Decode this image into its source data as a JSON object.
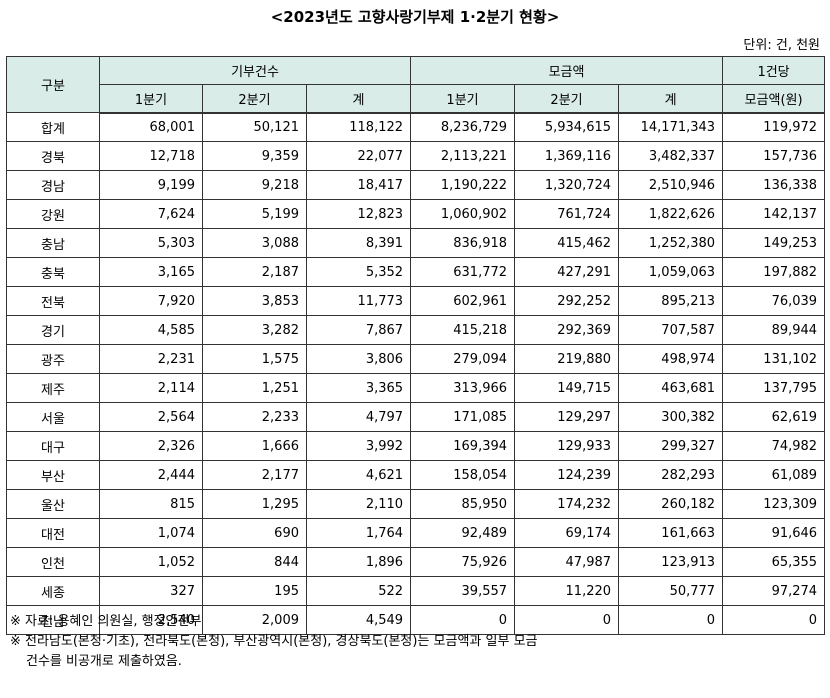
{
  "title": "<2023년도 고향사랑기부제 1·2분기 현황>",
  "unit": "단위: 건, 천원",
  "headers": {
    "category": "구분",
    "donation_count": "기부건수",
    "amount": "모금액",
    "per_donation_line1": "1건당",
    "per_donation_line2": "모금액(원)",
    "q1": "1분기",
    "q2": "2분기",
    "total": "계"
  },
  "rows": [
    {
      "region": "합계",
      "c1": "68,001",
      "c2": "50,121",
      "ct": "118,122",
      "a1": "8,236,729",
      "a2": "5,934,615",
      "at": "14,171,343",
      "per": "119,972"
    },
    {
      "region": "경북",
      "c1": "12,718",
      "c2": "9,359",
      "ct": "22,077",
      "a1": "2,113,221",
      "a2": "1,369,116",
      "at": "3,482,337",
      "per": "157,736"
    },
    {
      "region": "경남",
      "c1": "9,199",
      "c2": "9,218",
      "ct": "18,417",
      "a1": "1,190,222",
      "a2": "1,320,724",
      "at": "2,510,946",
      "per": "136,338"
    },
    {
      "region": "강원",
      "c1": "7,624",
      "c2": "5,199",
      "ct": "12,823",
      "a1": "1,060,902",
      "a2": "761,724",
      "at": "1,822,626",
      "per": "142,137"
    },
    {
      "region": "충남",
      "c1": "5,303",
      "c2": "3,088",
      "ct": "8,391",
      "a1": "836,918",
      "a2": "415,462",
      "at": "1,252,380",
      "per": "149,253"
    },
    {
      "region": "충북",
      "c1": "3,165",
      "c2": "2,187",
      "ct": "5,352",
      "a1": "631,772",
      "a2": "427,291",
      "at": "1,059,063",
      "per": "197,882"
    },
    {
      "region": "전북",
      "c1": "7,920",
      "c2": "3,853",
      "ct": "11,773",
      "a1": "602,961",
      "a2": "292,252",
      "at": "895,213",
      "per": "76,039"
    },
    {
      "region": "경기",
      "c1": "4,585",
      "c2": "3,282",
      "ct": "7,867",
      "a1": "415,218",
      "a2": "292,369",
      "at": "707,587",
      "per": "89,944"
    },
    {
      "region": "광주",
      "c1": "2,231",
      "c2": "1,575",
      "ct": "3,806",
      "a1": "279,094",
      "a2": "219,880",
      "at": "498,974",
      "per": "131,102"
    },
    {
      "region": "제주",
      "c1": "2,114",
      "c2": "1,251",
      "ct": "3,365",
      "a1": "313,966",
      "a2": "149,715",
      "at": "463,681",
      "per": "137,795"
    },
    {
      "region": "서울",
      "c1": "2,564",
      "c2": "2,233",
      "ct": "4,797",
      "a1": "171,085",
      "a2": "129,297",
      "at": "300,382",
      "per": "62,619"
    },
    {
      "region": "대구",
      "c1": "2,326",
      "c2": "1,666",
      "ct": "3,992",
      "a1": "169,394",
      "a2": "129,933",
      "at": "299,327",
      "per": "74,982"
    },
    {
      "region": "부산",
      "c1": "2,444",
      "c2": "2,177",
      "ct": "4,621",
      "a1": "158,054",
      "a2": "124,239",
      "at": "282,293",
      "per": "61,089"
    },
    {
      "region": "울산",
      "c1": "815",
      "c2": "1,295",
      "ct": "2,110",
      "a1": "85,950",
      "a2": "174,232",
      "at": "260,182",
      "per": "123,309"
    },
    {
      "region": "대전",
      "c1": "1,074",
      "c2": "690",
      "ct": "1,764",
      "a1": "92,489",
      "a2": "69,174",
      "at": "161,663",
      "per": "91,646"
    },
    {
      "region": "인천",
      "c1": "1,052",
      "c2": "844",
      "ct": "1,896",
      "a1": "75,926",
      "a2": "47,987",
      "at": "123,913",
      "per": "65,355"
    },
    {
      "region": "세종",
      "c1": "327",
      "c2": "195",
      "ct": "522",
      "a1": "39,557",
      "a2": "11,220",
      "at": "50,777",
      "per": "97,274"
    },
    {
      "region": "전남",
      "c1": "2,540",
      "c2": "2,009",
      "ct": "4,549",
      "a1": "0",
      "a2": "0",
      "at": "0",
      "per": "0"
    }
  ],
  "notes": {
    "source": "※ 자료: 용혜인 의원실, 행정안전부",
    "note_line1": "※ 전라남도(본청·기초), 전라북도(본청), 부산광역시(본청), 경상북도(본청)는 모금액과 일부 모금",
    "note_line2": "건수를 비공개로 제출하였음."
  }
}
